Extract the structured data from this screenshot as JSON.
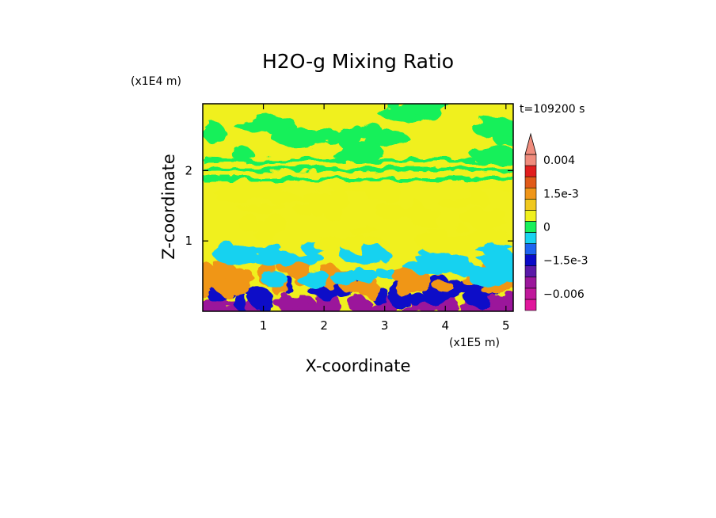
{
  "chart_data": {
    "type": "heatmap",
    "title": "H2O-g Mixing Ratio",
    "xlabel": "X-coordinate",
    "ylabel": "Z-coordinate",
    "x_unit": "(x1E5 m)",
    "y_unit": "(x1E4 m)",
    "time_label": "t=109200 s",
    "xlim": [
      0,
      5.12
    ],
    "ylim": [
      0,
      2.95
    ],
    "x_ticks": [
      "1",
      "2",
      "3",
      "4",
      "5"
    ],
    "x_tick_values": [
      1,
      2,
      3,
      4,
      5
    ],
    "y_ticks": [
      "1",
      "2"
    ],
    "y_tick_values": [
      1,
      2
    ],
    "colorbar": {
      "levels": [
        {
          "value": -0.008,
          "color": "#e1179c"
        },
        {
          "value": -0.006,
          "color": "#c0199b"
        },
        {
          "value": -0.0045,
          "color": "#9b179b"
        },
        {
          "value": -0.003,
          "color": "#5a19a8"
        },
        {
          "value": -0.0015,
          "color": "#0a0ac8"
        },
        {
          "value": -0.001,
          "color": "#1e64f0"
        },
        {
          "value": -0.0005,
          "color": "#19d2f0"
        },
        {
          "value": 0,
          "color": "#19f05a"
        },
        {
          "value": 0.0005,
          "color": "#f0f01e"
        },
        {
          "value": 0.001,
          "color": "#f0c81e"
        },
        {
          "value": 0.0015,
          "color": "#f09619"
        },
        {
          "value": 0.0025,
          "color": "#e15a19"
        },
        {
          "value": 0.003,
          "color": "#e11e1e"
        },
        {
          "value": 0.004,
          "color": "#f08c7d"
        }
      ],
      "labels": [
        {
          "text": "0.004",
          "value": 0.004
        },
        {
          "text": "1.5e-3",
          "value": 0.0015
        },
        {
          "text": "0",
          "value": 0
        },
        {
          "text": "−1.5e-3",
          "value": -0.0015
        },
        {
          "text": "−0.006",
          "value": -0.006
        }
      ]
    },
    "field_bands": [
      {
        "z_from": 0.0,
        "z_to": 0.15,
        "dominant": -0.0045
      },
      {
        "z_from": 0.15,
        "z_to": 0.45,
        "dominant": -0.0015
      },
      {
        "z_from": 0.3,
        "z_to": 0.65,
        "dominant": 0.0015
      },
      {
        "z_from": 0.45,
        "z_to": 0.95,
        "dominant": -0.0005
      },
      {
        "z_from": 0.95,
        "z_to": 1.55,
        "dominant": 0.0005
      },
      {
        "z_from": 1.55,
        "z_to": 2.2,
        "dominant": 0.0005
      },
      {
        "z_from": 2.2,
        "z_to": 2.95,
        "dominant": 0
      }
    ]
  }
}
